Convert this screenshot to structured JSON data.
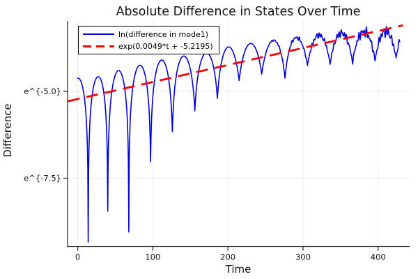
{
  "title": "Absolute Difference in States Over Time",
  "axes": {
    "xlabel": "Time",
    "ylabel": "Difference",
    "x_tick_labels": [
      "0",
      "100",
      "200",
      "300",
      "400"
    ],
    "y_tick_labels": [
      "e^{-5.0}",
      "e^{-7.5}"
    ]
  },
  "legend": {
    "entries": [
      {
        "label": "ln(difference in mode1)",
        "color": "#0000dd",
        "dash": false
      },
      {
        "label": "exp(0.0049*t + -5.2195)",
        "color": "#ff0000",
        "dash": true
      }
    ]
  },
  "colors": {
    "series_blue": "#0000dd",
    "fit_red": "#ff0000",
    "spine": "#2f2f2f",
    "grid": "#000000",
    "text": "#111111"
  },
  "chart_data": {
    "type": "line",
    "title": "Absolute Difference in States Over Time",
    "xlabel": "Time",
    "ylabel": "Difference",
    "x_scale": "linear",
    "y_scale": "ln (labels shown as e^{v})",
    "xlim": [
      -13.5,
      442
    ],
    "ylim_ln": [
      -9.47,
      -2.97
    ],
    "grid": true,
    "legend_position": "top-left",
    "x_ticks": [
      {
        "t": 0,
        "label": "0"
      },
      {
        "t": 100,
        "label": "100"
      },
      {
        "t": 200,
        "label": "200"
      },
      {
        "t": 300,
        "label": "300"
      },
      {
        "t": 400,
        "label": "400"
      }
    ],
    "y_ticks": [
      {
        "ln": -5.0,
        "label": "e^{-5.0}"
      },
      {
        "ln": -7.5,
        "label": "e^{-7.5}"
      }
    ],
    "series": [
      {
        "name": "ln(difference in mode1)",
        "color": "#0000dd",
        "style": "solid",
        "description": "ln|difference| of mode 1: arch-shaped oscillations (~29 t per arch) with sharp downward cusps whose depth shrinks over time; peak envelope grows from ln=-4.62 at t=0 to ln=-3.27 at t=429; late portion (t>250) becomes ragged with small high-frequency wiggles around the trend line",
        "t_start": 0,
        "t_end": 429,
        "sample_step": 0.5,
        "cusp_times": [
          14,
          40,
          68,
          97,
          126,
          156,
          186,
          215,
          245,
          276,
          306,
          336,
          366,
          396,
          424
        ],
        "cusp_depths_ln": [
          -9.34,
          -8.45,
          -9.05,
          -7.02,
          -6.16,
          -5.56,
          -5.2,
          -4.69,
          -4.5,
          -4.62,
          -4.25,
          -4.22,
          -4.18,
          -4.12,
          -4.05
        ],
        "peak_envelope_ln": [
          [
            -13,
            -4.63
          ],
          [
            0,
            -4.62
          ],
          [
            27,
            -4.58
          ],
          [
            54,
            -4.4
          ],
          [
            82,
            -4.25
          ],
          [
            111,
            -4.1
          ],
          [
            141,
            -3.98
          ],
          [
            171,
            -3.9
          ],
          [
            200,
            -3.72
          ],
          [
            230,
            -3.62
          ],
          [
            260,
            -3.53
          ],
          [
            291,
            -3.45
          ],
          [
            321,
            -3.38
          ],
          [
            351,
            -3.32
          ],
          [
            381,
            -3.28
          ],
          [
            410,
            -3.27
          ],
          [
            448,
            -3.25
          ]
        ],
        "virtual_bounds": {
          "lead_zero_t": -13,
          "lead_depth_ln": -9.3,
          "tail_zero_t": 448,
          "tail_depth_ln": -4.0
        },
        "late_jitter": {
          "onset_t": 235,
          "ramp": 160,
          "terms": [
            [
              0.085,
              1.9,
              0
            ],
            [
              0.065,
              2.6,
              1.3
            ],
            [
              0.05,
              1.13,
              0.4
            ]
          ]
        }
      },
      {
        "name": "exp(0.0049*t + -5.2195)",
        "color": "#ff0000",
        "style": "dashed",
        "slope": 0.0049,
        "intercept": -5.2195,
        "t_start": -13,
        "t_end": 433
      }
    ]
  }
}
